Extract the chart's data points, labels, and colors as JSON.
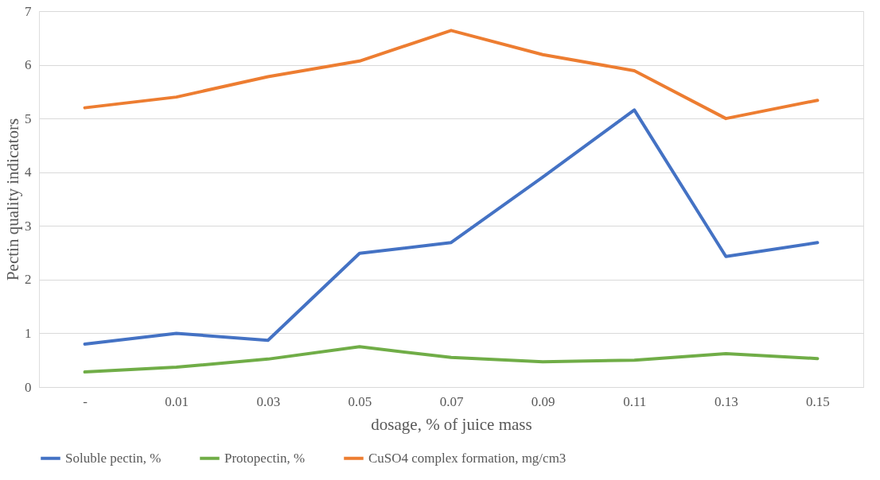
{
  "chart_data": {
    "type": "line",
    "xlabel": "dosage, % of juice mass",
    "ylabel": "Pectin quality indicators",
    "categories": [
      "-",
      "0.01",
      "0.03",
      "0.05",
      "0.07",
      "0.09",
      "0.11",
      "0.13",
      "0.15"
    ],
    "series": [
      {
        "name": "Soluble pectin, %",
        "color": "#4472c4",
        "values": [
          0.8,
          1.0,
          0.87,
          2.49,
          2.69,
          3.91,
          5.16,
          2.43,
          2.69
        ]
      },
      {
        "name": "Protopectin, %",
        "color": "#70ad47",
        "values": [
          0.28,
          0.37,
          0.52,
          0.75,
          0.55,
          0.47,
          0.5,
          0.62,
          0.53
        ]
      },
      {
        "name": "CuSO4 complex formation, mg/cm3",
        "color": "#ed7d31",
        "values": [
          5.2,
          5.4,
          5.78,
          6.07,
          6.64,
          6.19,
          5.89,
          5.0,
          5.34
        ]
      }
    ],
    "ylim": [
      0,
      7
    ],
    "yticks": [
      0,
      1,
      2,
      3,
      4,
      5,
      6,
      7
    ],
    "grid": "y",
    "legend": "bottom",
    "marker": "none",
    "line_style": "solid"
  }
}
